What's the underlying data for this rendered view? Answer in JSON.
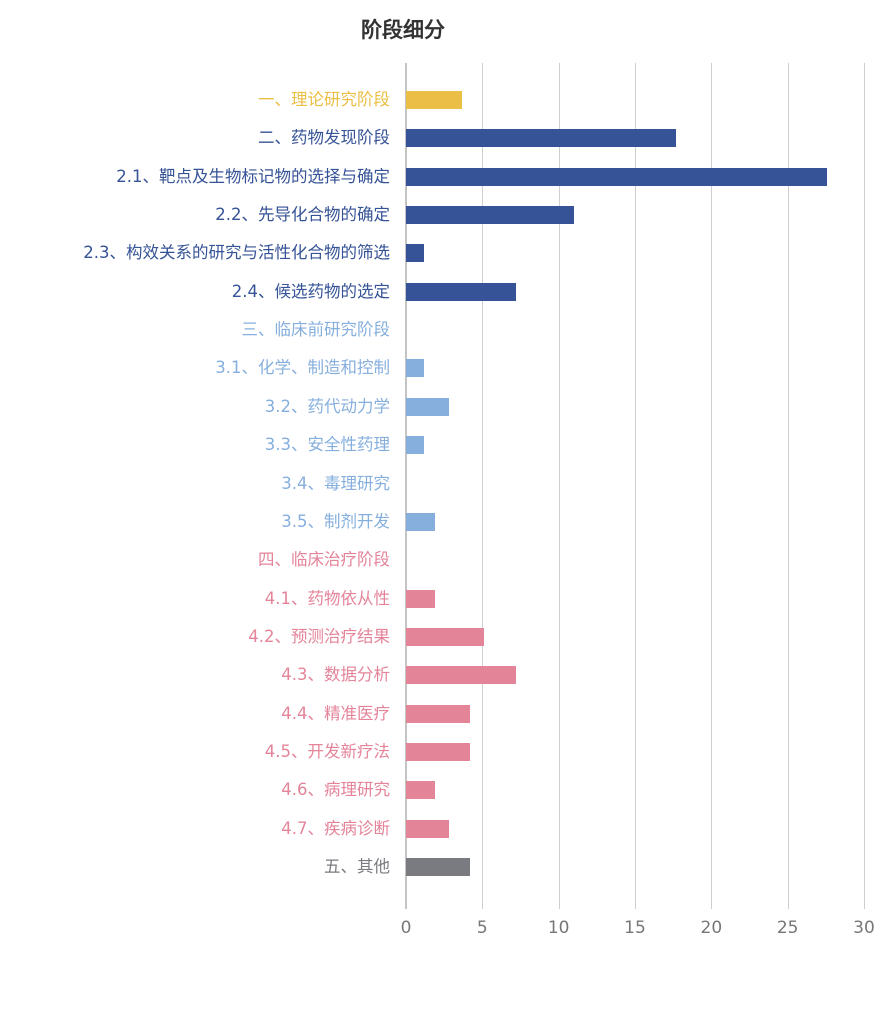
{
  "chart_data": {
    "type": "bar",
    "orientation": "horizontal",
    "title": "阶段细分",
    "xlabel": "",
    "ylabel": "",
    "xlim": [
      0,
      30
    ],
    "x_ticks": [
      "0",
      "5",
      "10",
      "15",
      "20",
      "25",
      "30"
    ],
    "grid": true,
    "legend": null,
    "categories": [
      "一、理论研究阶段",
      "二、药物发现阶段",
      "2.1、靶点及生物标记物的选择与确定",
      "2.2、先导化合物的确定",
      "2.3、构效关系的研究与活性化合物的筛选",
      "2.4、候选药物的选定",
      "三、临床前研究阶段",
      "3.1、化学、制造和控制",
      "3.2、药代动力学",
      "3.3、安全性药理",
      "3.4、毒理研究",
      "3.5、制剂开发",
      "四、临床治疗阶段",
      "4.1、药物依从性",
      "4.2、预测治疗结果",
      "4.3、数据分析",
      "4.4、精准医疗",
      "4.5、开发新疗法",
      "4.6、病理研究",
      "4.7、疾病诊断",
      "五、其他"
    ],
    "values": [
      3.7,
      17.7,
      27.6,
      11.0,
      1.2,
      7.2,
      0,
      1.2,
      2.8,
      1.2,
      0,
      1.9,
      0,
      1.9,
      5.1,
      7.2,
      4.2,
      4.2,
      1.9,
      2.8,
      4.2
    ],
    "groups": [
      "theory",
      "discovery",
      "discovery",
      "discovery",
      "discovery",
      "discovery",
      "preclinical",
      "preclinical",
      "preclinical",
      "preclinical",
      "preclinical",
      "preclinical",
      "clinical",
      "clinical",
      "clinical",
      "clinical",
      "clinical",
      "clinical",
      "clinical",
      "clinical",
      "other"
    ]
  },
  "colors": {
    "theory": "#EBBE45",
    "discovery": "#355396",
    "preclinical": "#86AFDE",
    "clinical": "#E48499",
    "other": "#7A7B80"
  },
  "title": "阶段细分"
}
